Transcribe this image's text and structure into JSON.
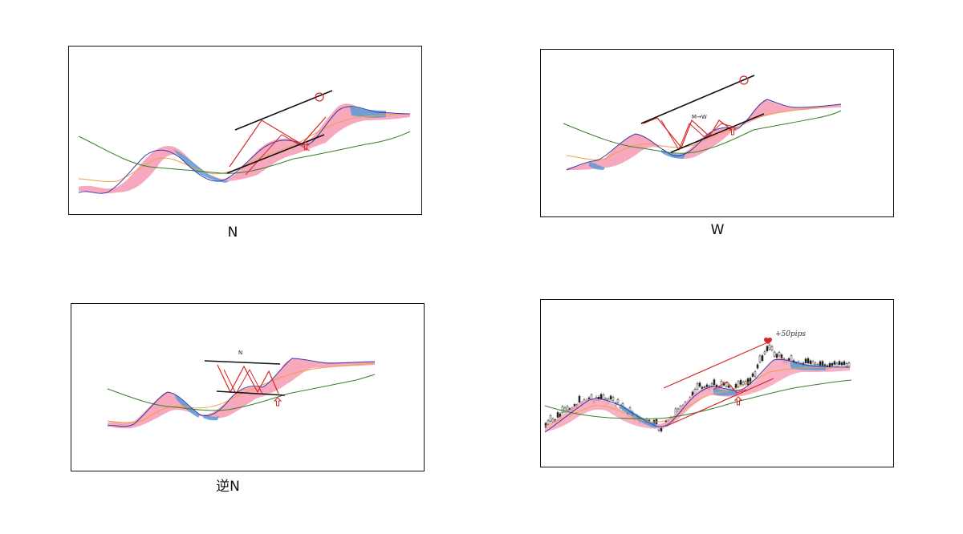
{
  "panels": {
    "n": {
      "caption": "N"
    },
    "w": {
      "caption": "W",
      "annotation": "M→W"
    },
    "reverse_n": {
      "caption": "逆N",
      "annotation": "N"
    },
    "price": {
      "annotation": "+50pips"
    }
  },
  "colors": {
    "cloud_bull": "#f7a8bd",
    "cloud_bear": "#5b9bd5",
    "line_red": "#d62828",
    "line_blue": "#3a3aa8",
    "ma_orange": "#f0a04b",
    "ma_green": "#3a7d2c",
    "trendline": "#111111",
    "candles": "#222222"
  },
  "icons": [
    "up-arrow-icon",
    "circle-target-icon",
    "heart-icon"
  ]
}
